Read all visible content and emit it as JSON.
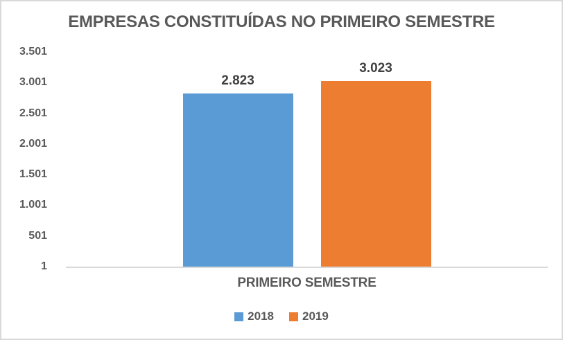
{
  "chart_data": {
    "type": "bar",
    "title": "EMPRESAS CONSTITUÍDAS NO PRIMEIRO SEMESTRE",
    "categories": [
      "PRIMEIRO SEMESTRE"
    ],
    "series": [
      {
        "name": "2018",
        "values": [
          2823
        ],
        "value_labels": [
          "2.823"
        ],
        "color": "#5B9BD5"
      },
      {
        "name": "2019",
        "values": [
          3023
        ],
        "value_labels": [
          "3.023"
        ],
        "color": "#ED7D31"
      }
    ],
    "ylim": [
      1,
      3501
    ],
    "ytick_interval": 500,
    "yticks": [
      {
        "label": "3.501",
        "value": 3501
      },
      {
        "label": "3.001",
        "value": 3001
      },
      {
        "label": "2.501",
        "value": 2501
      },
      {
        "label": "2.001",
        "value": 2001
      },
      {
        "label": "1.501",
        "value": 1501
      },
      {
        "label": "1.001",
        "value": 1001
      },
      {
        "label": "501",
        "value": 501
      },
      {
        "label": "1",
        "value": 1
      }
    ],
    "grid": false,
    "legend_position": "bottom",
    "colors": {
      "series_2018": "#5B9BD5",
      "series_2019": "#ED7D31",
      "axis_line": "#D9D9D9",
      "frame_border": "#D9D9D9",
      "axis_text": "#595959",
      "title_text": "#595959",
      "value_label_text": "#404040"
    }
  }
}
